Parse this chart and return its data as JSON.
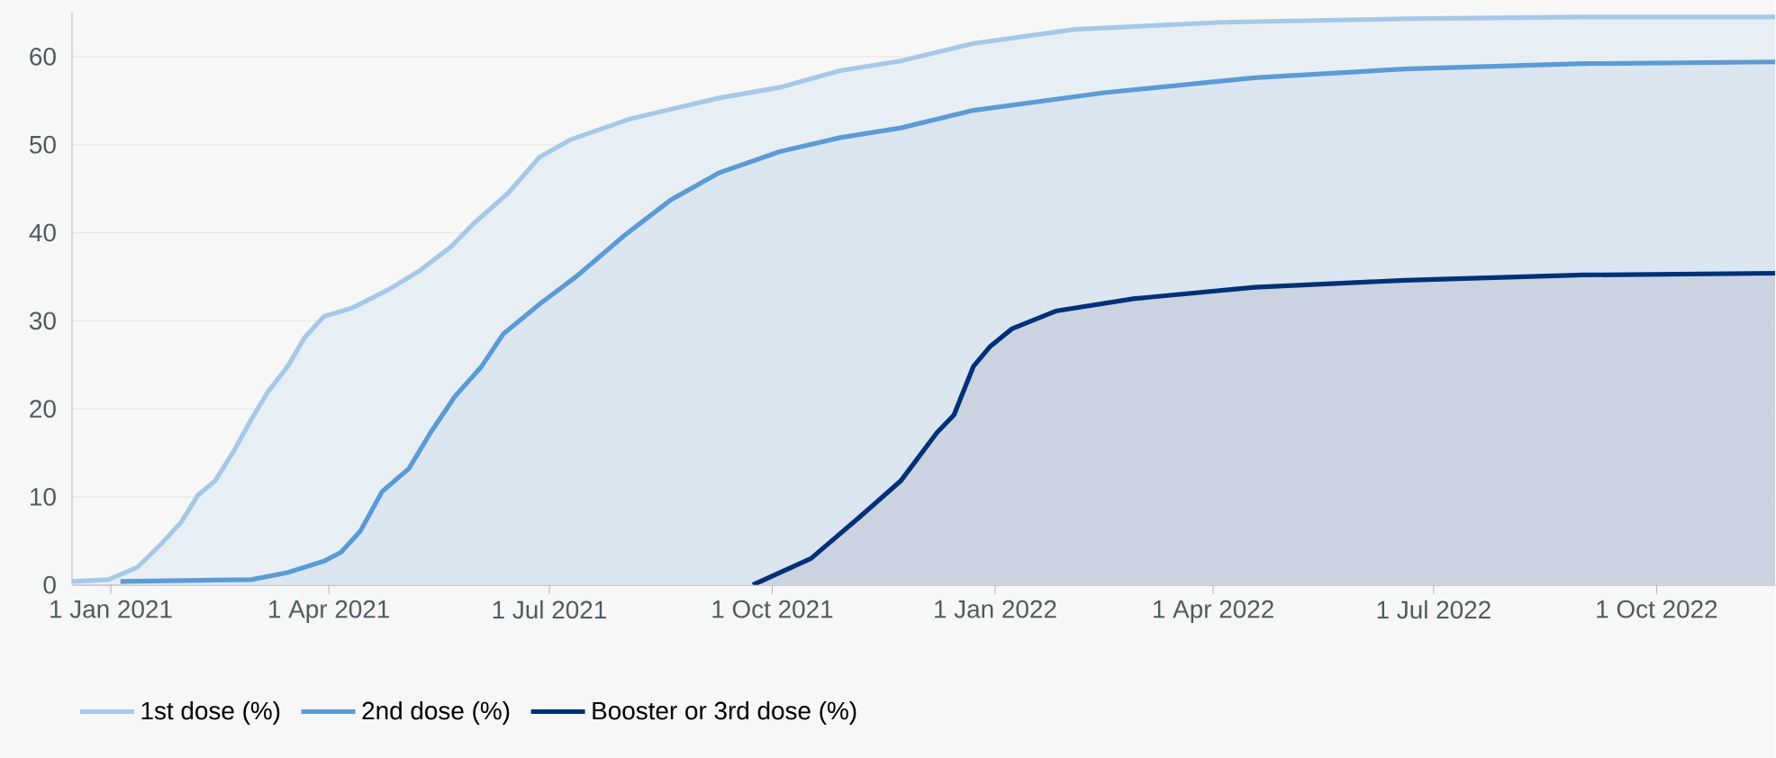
{
  "chart_data": {
    "type": "area",
    "xlim": [
      "2020-12-16",
      "2022-11-19"
    ],
    "ylim": [
      0,
      65
    ],
    "xticks": [
      {
        "value": "2021-01-01",
        "label": "1 Jan 2021"
      },
      {
        "value": "2021-04-01",
        "label": "1 Apr 2021"
      },
      {
        "value": "2021-07-01",
        "label": "1 Jul 2021"
      },
      {
        "value": "2021-10-01",
        "label": "1 Oct 2021"
      },
      {
        "value": "2022-01-01",
        "label": "1 Jan 2022"
      },
      {
        "value": "2022-04-01",
        "label": "1 Apr 2022"
      },
      {
        "value": "2022-07-01",
        "label": "1 Jul 2022"
      },
      {
        "value": "2022-10-01",
        "label": "1 Oct 2022"
      }
    ],
    "yticks": [
      0,
      10,
      20,
      30,
      40,
      50,
      60
    ],
    "grid": "y",
    "legend": "bottom",
    "marker": "none",
    "line_style": "solid",
    "series": [
      {
        "name": "1st dose (%)",
        "color": "#a6c8e8",
        "x": [
          "2020-12-16",
          "2020-12-31",
          "2021-01-12",
          "2021-01-22",
          "2021-01-30",
          "2021-02-06",
          "2021-02-13",
          "2021-02-21",
          "2021-02-28",
          "2021-03-07",
          "2021-03-15",
          "2021-03-22",
          "2021-03-30",
          "2021-04-11",
          "2021-04-26",
          "2021-05-08",
          "2021-05-21",
          "2021-05-31",
          "2021-06-14",
          "2021-06-27",
          "2021-07-10",
          "2021-08-03",
          "2021-09-09",
          "2021-10-04",
          "2021-10-29",
          "2021-11-23",
          "2021-12-23",
          "2022-02-03",
          "2022-04-05",
          "2022-06-19",
          "2022-09-01",
          "2022-11-19"
        ],
        "values": [
          0.4,
          0.6,
          2.0,
          4.7,
          7.1,
          10.2,
          11.8,
          15.3,
          18.8,
          22.0,
          24.8,
          28.1,
          30.5,
          31.5,
          33.6,
          35.6,
          38.3,
          41.1,
          44.5,
          48.6,
          50.6,
          52.9,
          55.3,
          56.5,
          58.4,
          59.5,
          61.5,
          63.1,
          63.9,
          64.3,
          64.5,
          64.5
        ]
      },
      {
        "name": "2nd dose (%)",
        "color": "#5b9bd5",
        "x": [
          "2021-01-05",
          "2021-02-28",
          "2021-03-15",
          "2021-03-30",
          "2021-04-06",
          "2021-04-14",
          "2021-04-23",
          "2021-05-04",
          "2021-05-13",
          "2021-05-23",
          "2021-06-03",
          "2021-06-12",
          "2021-06-27",
          "2021-07-12",
          "2021-08-01",
          "2021-08-20",
          "2021-09-09",
          "2021-10-04",
          "2021-10-29",
          "2021-11-23",
          "2021-12-23",
          "2022-02-15",
          "2022-04-18",
          "2022-06-19",
          "2022-09-01",
          "2022-11-19"
        ],
        "values": [
          0.4,
          0.6,
          1.4,
          2.7,
          3.7,
          6.1,
          10.6,
          13.2,
          17.3,
          21.4,
          24.8,
          28.5,
          31.9,
          35.0,
          39.7,
          43.7,
          46.8,
          49.2,
          50.8,
          51.9,
          53.9,
          55.9,
          57.6,
          58.6,
          59.2,
          59.4
        ]
      },
      {
        "name": "Booster or 3rd dose (%)",
        "color": "#003078",
        "x": [
          "2021-09-23",
          "2021-10-17",
          "2021-11-06",
          "2021-11-23",
          "2021-12-08",
          "2021-12-15",
          "2021-12-23",
          "2021-12-30",
          "2022-01-08",
          "2022-01-26",
          "2022-02-27",
          "2022-04-18",
          "2022-06-19",
          "2022-09-01",
          "2022-11-19"
        ],
        "values": [
          0,
          3.0,
          7.7,
          11.8,
          17.3,
          19.3,
          24.8,
          27.1,
          29.1,
          31.1,
          32.5,
          33.8,
          34.6,
          35.2,
          35.4
        ]
      }
    ]
  }
}
